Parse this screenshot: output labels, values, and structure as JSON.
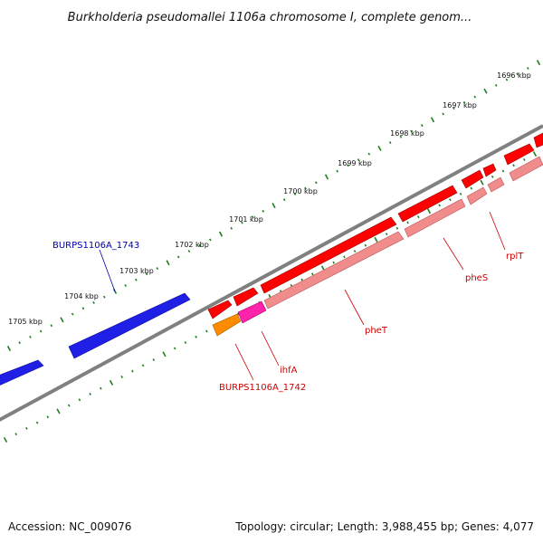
{
  "title": "Burkholderia pseudomallei 1106a chromosome I, complete genom...",
  "footer": {
    "accession": "Accession: NC_009076",
    "topology": "Topology: circular; Length: 3,988,455 bp; Genes: 4,077"
  },
  "colors": {
    "backbone": "#808080",
    "ticks": "#1e7f1e",
    "reverse_gene": "#1f1fe6",
    "forward_gene": "#ff0000",
    "forward_shade": "#f08c8c",
    "orange_gene": "#ff8c00",
    "magenta_gene": "#ff22aa",
    "label_red": "#cc0000",
    "label_blue": "#0000aa"
  },
  "scale_ticks": [
    {
      "label": "1696 kbp",
      "kbp": 1696
    },
    {
      "label": "1697 kbp",
      "kbp": 1697
    },
    {
      "label": "1698 kbp",
      "kbp": 1698
    },
    {
      "label": "1699 kbp",
      "kbp": 1699
    },
    {
      "label": "1700 kbp",
      "kbp": 1700
    },
    {
      "label": "1701 kbp",
      "kbp": 1701
    },
    {
      "label": "1702 kbp",
      "kbp": 1702
    },
    {
      "label": "1703 kbp",
      "kbp": 1703
    },
    {
      "label": "1704 kbp",
      "kbp": 1704
    },
    {
      "label": "1705 kbp",
      "kbp": 1705
    }
  ],
  "gene_labels": [
    {
      "name": "BURPS1106A_1743",
      "strand": "reverse"
    },
    {
      "name": "rplT",
      "strand": "forward"
    },
    {
      "name": "pheS",
      "strand": "forward"
    },
    {
      "name": "pheT",
      "strand": "forward"
    },
    {
      "name": "ihfA",
      "strand": "forward"
    },
    {
      "name": "BURPS1106A_1742",
      "strand": "forward"
    }
  ]
}
